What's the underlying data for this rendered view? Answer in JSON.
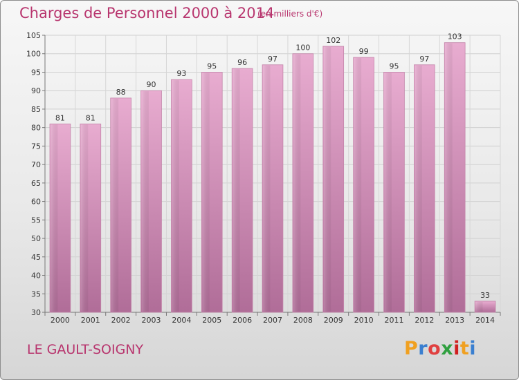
{
  "header": {
    "title": "Charges de Personnel 2000 à 2014",
    "subtitle": "(en milliers d'€)"
  },
  "footer": {
    "place": "LE GAULT-SOIGNY",
    "logo_text": "Proxiti",
    "logo_colors": [
      "#f0a020",
      "#3a7fd0",
      "#e04040",
      "#30a040",
      "#d02020",
      "#f0a020",
      "#3a7fd0"
    ]
  },
  "chart_data": {
    "type": "bar",
    "categories": [
      "2000",
      "2001",
      "2002",
      "2003",
      "2004",
      "2005",
      "2006",
      "2007",
      "2008",
      "2009",
      "2010",
      "2011",
      "2012",
      "2013",
      "2014"
    ],
    "values": [
      81,
      81,
      88,
      90,
      93,
      95,
      96,
      97,
      100,
      102,
      99,
      95,
      97,
      103,
      33
    ],
    "title": "Charges de Personnel 2000 à 2014",
    "subtitle": "(en milliers d'€)",
    "xlabel": "",
    "ylabel": "",
    "ylim": [
      30,
      105
    ],
    "yticks": [
      30,
      35,
      40,
      45,
      50,
      55,
      60,
      65,
      70,
      75,
      80,
      85,
      90,
      95,
      100,
      105
    ],
    "grid": true,
    "data_labels": true,
    "bar_color": "#d98cb8"
  }
}
